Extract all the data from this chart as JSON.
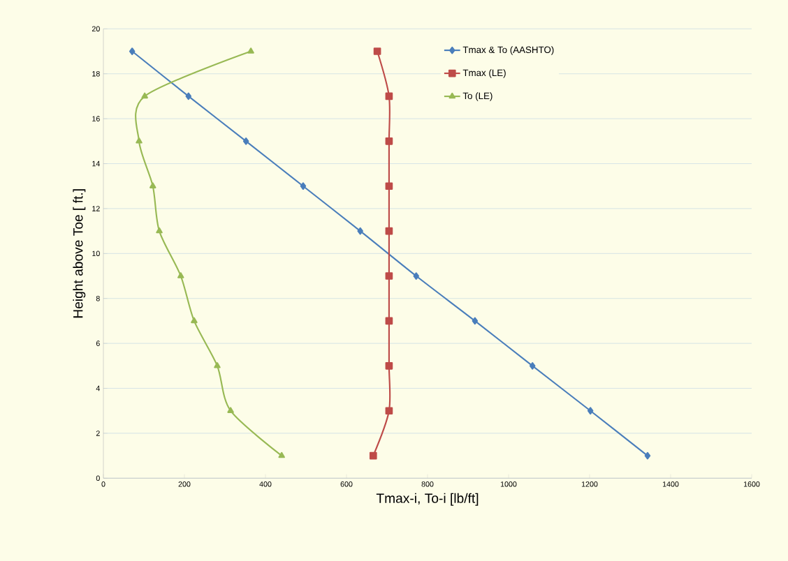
{
  "chart_data": {
    "type": "line",
    "xlabel": "Tmax-i,  To-i          [lb/ft]",
    "ylabel": "Height above Toe  [ ft.]",
    "xlim": [
      0,
      1600
    ],
    "xticks": [
      0,
      200,
      400,
      600,
      800,
      1000,
      1200,
      1400,
      1600
    ],
    "ylim": [
      0,
      20
    ],
    "yticks": [
      0,
      2,
      4,
      6,
      8,
      10,
      12,
      14,
      16,
      18,
      20
    ],
    "grid": "y",
    "legend": "top right",
    "series": [
      {
        "name": "Tmax & To  (AASHTO)",
        "color": "#4a7ebb",
        "marker": "diamond",
        "x": [
          71,
          210,
          352,
          493,
          634,
          772,
          917,
          1059,
          1202,
          1343
        ],
        "values": [
          19,
          17,
          15,
          13,
          11,
          9,
          7,
          5,
          3,
          1
        ]
      },
      {
        "name": "Tmax (LE)",
        "color": "#be4b48",
        "marker": "square",
        "x": [
          676,
          705,
          705,
          705,
          705,
          705,
          705,
          705,
          705,
          666
        ],
        "values": [
          19,
          17,
          15,
          13,
          11,
          9,
          7,
          5,
          3,
          1
        ]
      },
      {
        "name": "To  (LE)",
        "color": "#98b954",
        "marker": "triangle",
        "x": [
          364,
          102,
          88,
          122,
          138,
          191,
          224,
          281,
          314,
          440
        ],
        "values": [
          19,
          17,
          15,
          13,
          11,
          9,
          7,
          5,
          3,
          1
        ]
      }
    ]
  }
}
